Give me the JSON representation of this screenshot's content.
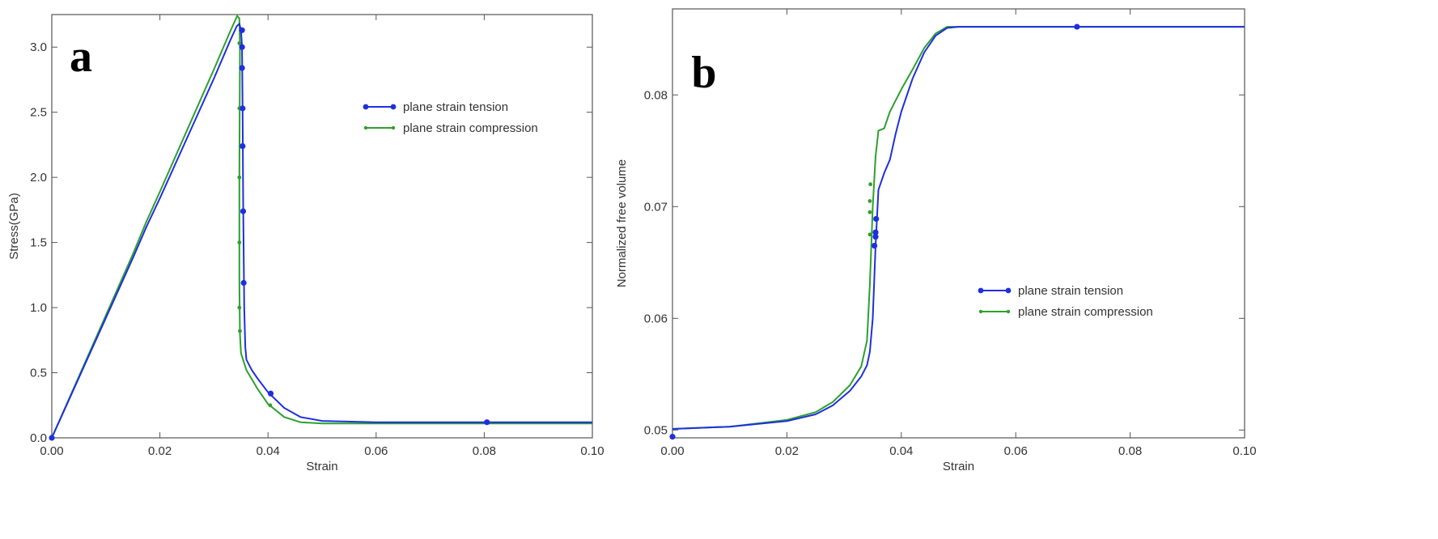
{
  "colors": {
    "tension": "#1f2fe0",
    "compression": "#2ea02e",
    "frame": "#555555",
    "text": "#333333"
  },
  "chart_data": [
    {
      "type": "line",
      "panel_label": "a",
      "xlabel": "Strain",
      "ylabel": "Stress(GPa)",
      "xlim": [
        0,
        0.1
      ],
      "ylim": [
        0,
        3.25
      ],
      "xticks": [
        0.0,
        0.02,
        0.04,
        0.06,
        0.08,
        0.1
      ],
      "xtick_labels": [
        "0.00",
        "0.02",
        "0.04",
        "0.06",
        "0.08",
        "0.10"
      ],
      "yticks": [
        0.0,
        0.5,
        1.0,
        1.5,
        2.0,
        2.5,
        3.0
      ],
      "ytick_labels": [
        "0.0",
        "0.5",
        "1.0",
        "1.5",
        "2.0",
        "2.5",
        "3.0"
      ],
      "grid": false,
      "legend": "upper right",
      "series": [
        {
          "name": "plane strain tension",
          "color": "#1f2fe0",
          "line": [
            [
              0,
              0
            ],
            [
              0.005,
              0.46
            ],
            [
              0.01,
              0.92
            ],
            [
              0.015,
              1.38
            ],
            [
              0.0175,
              1.62
            ],
            [
              0.02,
              1.84
            ],
            [
              0.025,
              2.3
            ],
            [
              0.03,
              2.76
            ],
            [
              0.033,
              3.05
            ],
            [
              0.0342,
              3.16
            ],
            [
              0.0347,
              3.18
            ],
            [
              0.035,
              3.13
            ],
            [
              0.0352,
              3.0
            ],
            [
              0.0353,
              2.5
            ],
            [
              0.0354,
              1.8
            ],
            [
              0.0356,
              1.0
            ],
            [
              0.0358,
              0.7
            ],
            [
              0.036,
              0.6
            ],
            [
              0.037,
              0.52
            ],
            [
              0.038,
              0.46
            ],
            [
              0.04,
              0.35
            ],
            [
              0.043,
              0.23
            ],
            [
              0.046,
              0.16
            ],
            [
              0.05,
              0.13
            ],
            [
              0.06,
              0.12
            ],
            [
              0.08,
              0.12
            ],
            [
              0.1,
              0.12
            ]
          ],
          "markers": [
            [
              0,
              0
            ],
            [
              0.0352,
              3.13
            ],
            [
              0.0352,
              3.0
            ],
            [
              0.0352,
              2.84
            ],
            [
              0.0353,
              2.53
            ],
            [
              0.0353,
              2.24
            ],
            [
              0.0354,
              1.74
            ],
            [
              0.0355,
              1.19
            ],
            [
              0.0405,
              0.34
            ],
            [
              0.0805,
              0.12
            ]
          ]
        },
        {
          "name": "plane strain compression",
          "color": "#2ea02e",
          "line": [
            [
              0,
              0
            ],
            [
              0.005,
              0.47
            ],
            [
              0.01,
              0.94
            ],
            [
              0.015,
              1.41
            ],
            [
              0.0175,
              1.66
            ],
            [
              0.02,
              1.89
            ],
            [
              0.025,
              2.36
            ],
            [
              0.03,
              2.83
            ],
            [
              0.033,
              3.12
            ],
            [
              0.0343,
              3.24
            ],
            [
              0.0347,
              3.22
            ],
            [
              0.0348,
              3.0
            ],
            [
              0.0347,
              2.0
            ],
            [
              0.0347,
              1.2
            ],
            [
              0.0348,
              0.8
            ],
            [
              0.035,
              0.65
            ],
            [
              0.036,
              0.52
            ],
            [
              0.038,
              0.38
            ],
            [
              0.04,
              0.26
            ],
            [
              0.043,
              0.16
            ],
            [
              0.046,
              0.12
            ],
            [
              0.05,
              0.11
            ],
            [
              0.06,
              0.11
            ],
            [
              0.08,
              0.11
            ],
            [
              0.1,
              0.11
            ]
          ],
          "markers": [
            [
              0.0347,
              3.03
            ],
            [
              0.0347,
              2.53
            ],
            [
              0.0347,
              2.0
            ],
            [
              0.0347,
              1.5
            ],
            [
              0.0347,
              1.0
            ],
            [
              0.0348,
              0.82
            ],
            [
              0.0404,
              0.25
            ]
          ]
        }
      ]
    },
    {
      "type": "line",
      "panel_label": "b",
      "xlabel": "Strain",
      "ylabel": "Normalized free volume",
      "xlim": [
        0,
        0.1
      ],
      "ylim": [
        0.0493,
        0.0877
      ],
      "xticks": [
        0.0,
        0.02,
        0.04,
        0.06,
        0.08,
        0.1
      ],
      "xtick_labels": [
        "0.00",
        "0.02",
        "0.04",
        "0.06",
        "0.08",
        "0.10"
      ],
      "yticks": [
        0.05,
        0.06,
        0.07,
        0.08
      ],
      "ytick_labels": [
        "0.05",
        "0.06",
        "0.07",
        "0.08"
      ],
      "grid": false,
      "legend": "center right",
      "series": [
        {
          "name": "plane strain tension",
          "color": "#1f2fe0",
          "line": [
            [
              0,
              0.0501
            ],
            [
              0.01,
              0.0503
            ],
            [
              0.02,
              0.0508
            ],
            [
              0.025,
              0.0514
            ],
            [
              0.028,
              0.0522
            ],
            [
              0.031,
              0.0535
            ],
            [
              0.033,
              0.0548
            ],
            [
              0.034,
              0.0558
            ],
            [
              0.0345,
              0.057
            ],
            [
              0.035,
              0.06
            ],
            [
              0.0355,
              0.0665
            ],
            [
              0.036,
              0.0715
            ],
            [
              0.037,
              0.073
            ],
            [
              0.038,
              0.0742
            ],
            [
              0.039,
              0.0765
            ],
            [
              0.04,
              0.0785
            ],
            [
              0.042,
              0.0815
            ],
            [
              0.044,
              0.0838
            ],
            [
              0.046,
              0.0853
            ],
            [
              0.048,
              0.086
            ],
            [
              0.05,
              0.0861
            ],
            [
              0.07,
              0.0861
            ],
            [
              0.1,
              0.0861
            ]
          ],
          "markers": [
            [
              0,
              0.0494
            ],
            [
              0.0353,
              0.0665
            ],
            [
              0.0355,
              0.0673
            ],
            [
              0.0355,
              0.0677
            ],
            [
              0.0356,
              0.0689
            ],
            [
              0.0707,
              0.0861
            ]
          ]
        },
        {
          "name": "plane strain compression",
          "color": "#2ea02e",
          "line": [
            [
              0,
              0.0501
            ],
            [
              0.01,
              0.0503
            ],
            [
              0.02,
              0.0509
            ],
            [
              0.025,
              0.0516
            ],
            [
              0.028,
              0.0525
            ],
            [
              0.031,
              0.054
            ],
            [
              0.033,
              0.0557
            ],
            [
              0.034,
              0.058
            ],
            [
              0.0345,
              0.063
            ],
            [
              0.035,
              0.07
            ],
            [
              0.0355,
              0.0745
            ],
            [
              0.036,
              0.0768
            ],
            [
              0.037,
              0.077
            ],
            [
              0.038,
              0.0785
            ],
            [
              0.04,
              0.0805
            ],
            [
              0.042,
              0.0823
            ],
            [
              0.044,
              0.0842
            ],
            [
              0.046,
              0.0855
            ],
            [
              0.048,
              0.0861
            ],
            [
              0.05,
              0.0861
            ],
            [
              0.1,
              0.0861
            ]
          ],
          "markers": [
            [
              0.0345,
              0.0675
            ],
            [
              0.0345,
              0.0695
            ],
            [
              0.0345,
              0.0705
            ],
            [
              0.0346,
              0.072
            ]
          ]
        }
      ]
    }
  ]
}
